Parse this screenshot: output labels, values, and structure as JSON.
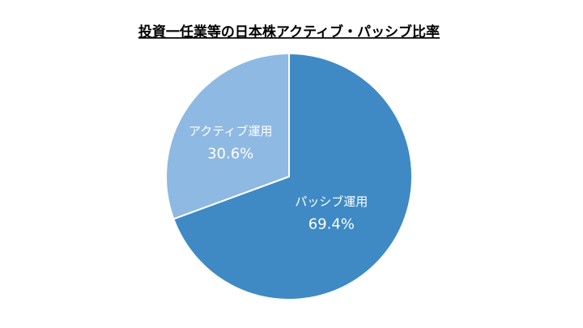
{
  "chart_data": {
    "type": "pie",
    "title": "投資一任業等の日本株アクティブ・パッシブ比率",
    "categories": [
      "パッシブ運用",
      "アクティブ運用"
    ],
    "values": [
      69.4,
      30.6
    ],
    "value_labels": [
      "69.4%",
      "30.6%"
    ],
    "colors": [
      "#3f8ac5",
      "#8eb9e3"
    ]
  }
}
